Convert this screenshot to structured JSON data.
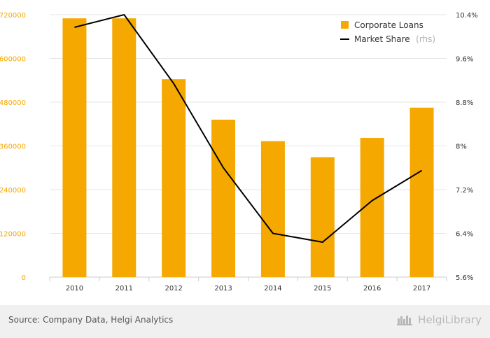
{
  "chart_data": {
    "type": "bar+line",
    "categories": [
      "2010",
      "2011",
      "2012",
      "2013",
      "2014",
      "2015",
      "2016",
      "2017"
    ],
    "series": [
      {
        "name": "Corporate Loans",
        "type": "bar",
        "axis": "left",
        "values": [
          710000,
          710000,
          543000,
          432000,
          373000,
          329000,
          382000,
          465000
        ]
      },
      {
        "name": "Market Share",
        "type": "line",
        "axis": "right",
        "values": [
          10.17,
          10.4,
          9.14,
          7.6,
          6.4,
          6.24,
          7.0,
          7.55
        ]
      }
    ],
    "left_axis": {
      "min": 0,
      "max": 720000,
      "ticks": [
        0,
        120000,
        240000,
        360000,
        480000,
        600000,
        720000
      ],
      "tick_labels": [
        "0",
        "120000",
        "240000",
        "360000",
        "480000",
        "600000",
        "720000"
      ]
    },
    "right_axis": {
      "min": 5.6,
      "max": 10.4,
      "ticks": [
        5.6,
        6.4,
        7.2,
        8.0,
        8.8,
        9.6,
        10.4
      ],
      "tick_labels": [
        "5.6%",
        "6.4%",
        "7.2%",
        "8%",
        "8.8%",
        "9.6%",
        "10.4%"
      ]
    },
    "grid": true,
    "legend_position": "top-right",
    "colors": {
      "bar": "#F5A800",
      "line": "#000000",
      "left_ticks": "#F5A800",
      "grid": "#e6e6e6"
    }
  },
  "legend": {
    "bars_label": "Corporate Loans",
    "line_label": "Market Share",
    "line_suffix": "(rhs)"
  },
  "footer": {
    "source": "Source: Company Data, Helgi Analytics",
    "brand": "HelgiLibrary",
    "brand_icon": "helgi-library-logo"
  }
}
